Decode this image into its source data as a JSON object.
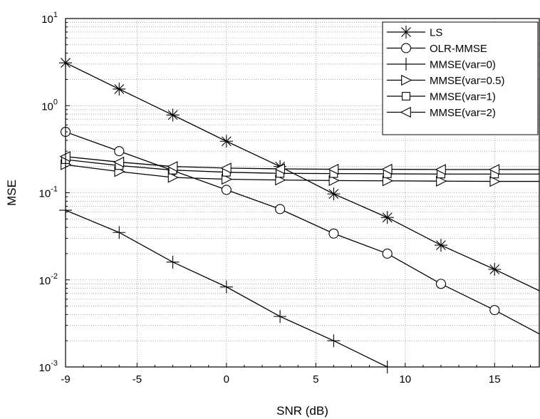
{
  "chart_data": {
    "type": "line",
    "title": "",
    "xlabel": "SNR (dB)",
    "ylabel": "MSE",
    "x_scale": "linear",
    "y_scale": "log",
    "xlim": [
      -9,
      17.5
    ],
    "ylim": [
      0.001,
      10
    ],
    "x_ticks": [
      "-9",
      "-5",
      "0",
      "5",
      "10",
      "15"
    ],
    "x_tick_values": [
      -9,
      -5,
      0,
      5,
      10,
      15
    ],
    "y_ticks": [
      {
        "base": "10",
        "exp": "1",
        "value": 10
      },
      {
        "base": "10",
        "exp": "0",
        "value": 1
      },
      {
        "base": "10",
        "exp": "-1",
        "value": 0.1
      },
      {
        "base": "10",
        "exp": "-2",
        "value": 0.01
      },
      {
        "base": "10",
        "exp": "-3",
        "value": 0.001
      }
    ],
    "grid": true,
    "legend_position": "top-right",
    "series": [
      {
        "name": "LS",
        "marker": "asterisk",
        "x": [
          -9,
          -6,
          -3,
          0,
          3,
          6,
          9,
          12,
          15,
          17.5
        ],
        "values": [
          3.1,
          1.55,
          0.78,
          0.39,
          0.2,
          0.097,
          0.052,
          0.025,
          0.0132,
          0.0075
        ]
      },
      {
        "name": "OLR-MMSE",
        "marker": "circle",
        "x": [
          -9,
          -6,
          -3,
          0,
          3,
          6,
          9,
          12,
          15,
          17.5
        ],
        "values": [
          0.5,
          0.3,
          0.18,
          0.108,
          0.065,
          0.034,
          0.02,
          0.009,
          0.0045,
          0.0024
        ]
      },
      {
        "name": "MMSE(var=0)",
        "marker": "plus",
        "x": [
          -9,
          -6,
          -3,
          0,
          3,
          6,
          9
        ],
        "values": [
          0.063,
          0.035,
          0.016,
          0.0083,
          0.0038,
          0.002,
          0.001
        ]
      },
      {
        "name": "MMSE(var=0.5)",
        "marker": "triangle-right",
        "x": [
          -9,
          -6,
          -3,
          0,
          3,
          6,
          9,
          12,
          15,
          17.5
        ],
        "values": [
          0.21,
          0.175,
          0.15,
          0.143,
          0.14,
          0.138,
          0.137,
          0.136,
          0.135,
          0.135
        ]
      },
      {
        "name": "MMSE(var=1)",
        "marker": "square",
        "x": [
          -9,
          -6,
          -3,
          0,
          3,
          6,
          9,
          12,
          15,
          17.5
        ],
        "values": [
          0.24,
          0.205,
          0.182,
          0.172,
          0.167,
          0.166,
          0.165,
          0.164,
          0.164,
          0.164
        ]
      },
      {
        "name": "MMSE(var=2)",
        "marker": "triangle-left",
        "x": [
          -9,
          -6,
          -3,
          0,
          3,
          6,
          9,
          12,
          15,
          17.5
        ],
        "values": [
          0.26,
          0.225,
          0.2,
          0.192,
          0.188,
          0.186,
          0.186,
          0.185,
          0.185,
          0.185
        ]
      }
    ]
  }
}
